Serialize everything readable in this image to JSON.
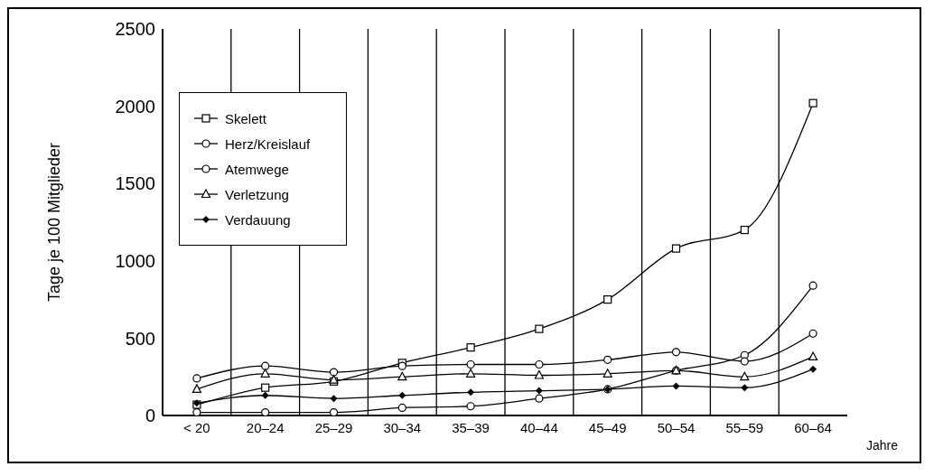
{
  "chart_data": {
    "type": "line",
    "ylabel": "Tage je 100 Mitglieder",
    "xlabel": "Jahre",
    "categories": [
      "< 20",
      "20–24",
      "25–29",
      "30–34",
      "35–39",
      "40–44",
      "45–49",
      "50–54",
      "55–59",
      "60–64"
    ],
    "series": [
      {
        "name": "Skelett",
        "color": "#000000",
        "marker": "square",
        "values": [
          70,
          180,
          220,
          340,
          440,
          560,
          750,
          1080,
          1200,
          2020
        ]
      },
      {
        "name": "Herz/Kreislauf",
        "color": "#000000",
        "marker": "circle",
        "values": [
          20,
          20,
          20,
          50,
          60,
          110,
          170,
          290,
          390,
          840
        ]
      },
      {
        "name": "Atemwege",
        "color": "#000000",
        "marker": "circle",
        "values": [
          240,
          320,
          280,
          320,
          330,
          330,
          360,
          410,
          350,
          530
        ]
      },
      {
        "name": "Verletzung",
        "color": "#000000",
        "marker": "triangle",
        "values": [
          170,
          270,
          230,
          250,
          270,
          260,
          270,
          290,
          250,
          380
        ]
      },
      {
        "name": "Verdauung",
        "color": "#000000",
        "marker": "diamond",
        "values": [
          80,
          130,
          110,
          130,
          150,
          160,
          170,
          190,
          180,
          300
        ]
      }
    ],
    "ylim": [
      0,
      2500
    ],
    "yticks": [
      0,
      500,
      1000,
      1500,
      2000,
      2500
    ],
    "grid": "x",
    "legend": "top left",
    "line_style": "solid"
  }
}
